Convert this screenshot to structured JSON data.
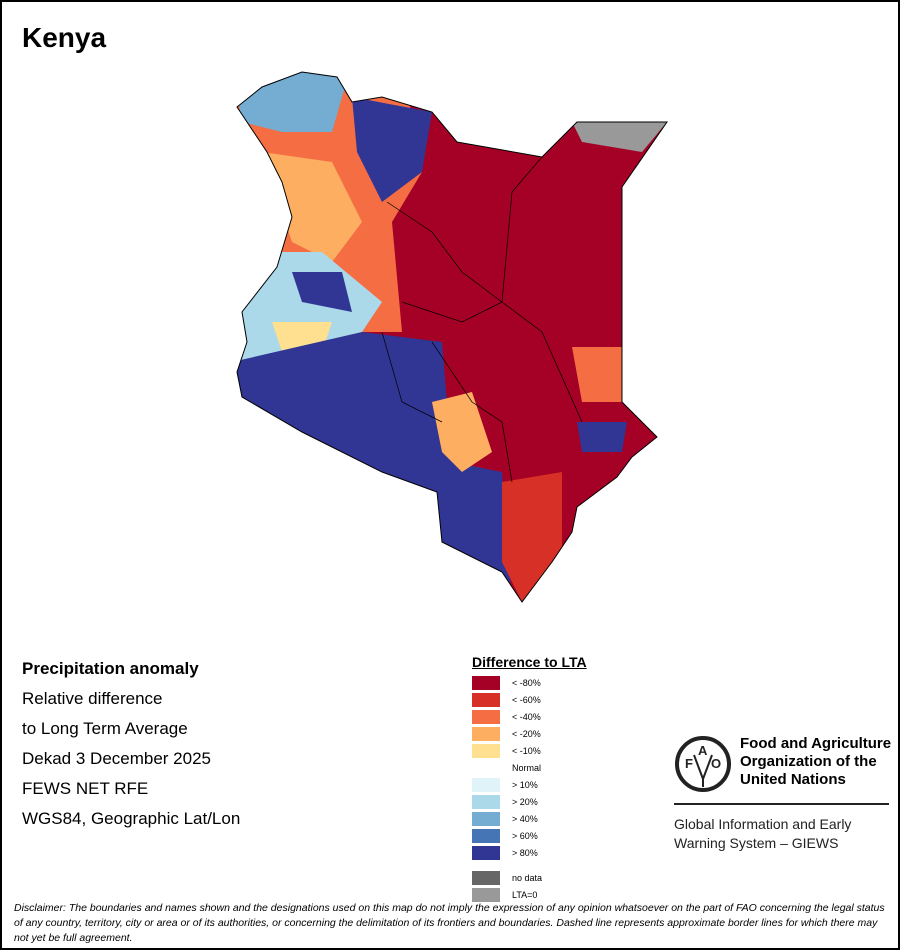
{
  "title": "Kenya",
  "info": {
    "heading": "Precipitation anomaly",
    "line1": "Relative difference",
    "line2": "to Long Term Average",
    "line3": "Dekad 3 December 2025",
    "line4": "FEWS NET RFE",
    "line5": "WGS84, Geographic Lat/Lon"
  },
  "legend": {
    "title": "Difference to LTA",
    "items": [
      {
        "label": "< -80%",
        "color": "#a50026"
      },
      {
        "label": "< -60%",
        "color": "#d73027"
      },
      {
        "label": "< -40%",
        "color": "#f46d43"
      },
      {
        "label": "< -20%",
        "color": "#fdae61"
      },
      {
        "label": "< -10%",
        "color": "#fee090"
      },
      {
        "label": "Normal",
        "color": "#ffffff"
      },
      {
        "label": "> 10%",
        "color": "#e0f3f8"
      },
      {
        "label": "> 20%",
        "color": "#abd9e9"
      },
      {
        "label": "> 40%",
        "color": "#74add1"
      },
      {
        "label": "> 60%",
        "color": "#4575b4"
      },
      {
        "label": "> 80%",
        "color": "#313695"
      }
    ],
    "extra": [
      {
        "label": "no data",
        "color": "#666666"
      },
      {
        "label": "LTA=0",
        "color": "#999999"
      }
    ]
  },
  "logo": {
    "emblem_text": "FAO FIAT PANIS",
    "name_line1": "Food and Agriculture",
    "name_line2": "Organization of the",
    "name_line3": "United Nations",
    "giews_line1": "Global Information and Early",
    "giews_line2": "Warning System – GIEWS"
  },
  "disclaimer": "Disclaimer: The boundaries and names shown and the designations used on this map do not imply the expression of any opinion whatsoever on the part of FAO concerning the legal status of any country, territory, city or area or of its authorities, or concerning the delimitation of its frontiers and boundaries. Dashed line represents approximate border lines for which there may not yet be full agreement."
}
